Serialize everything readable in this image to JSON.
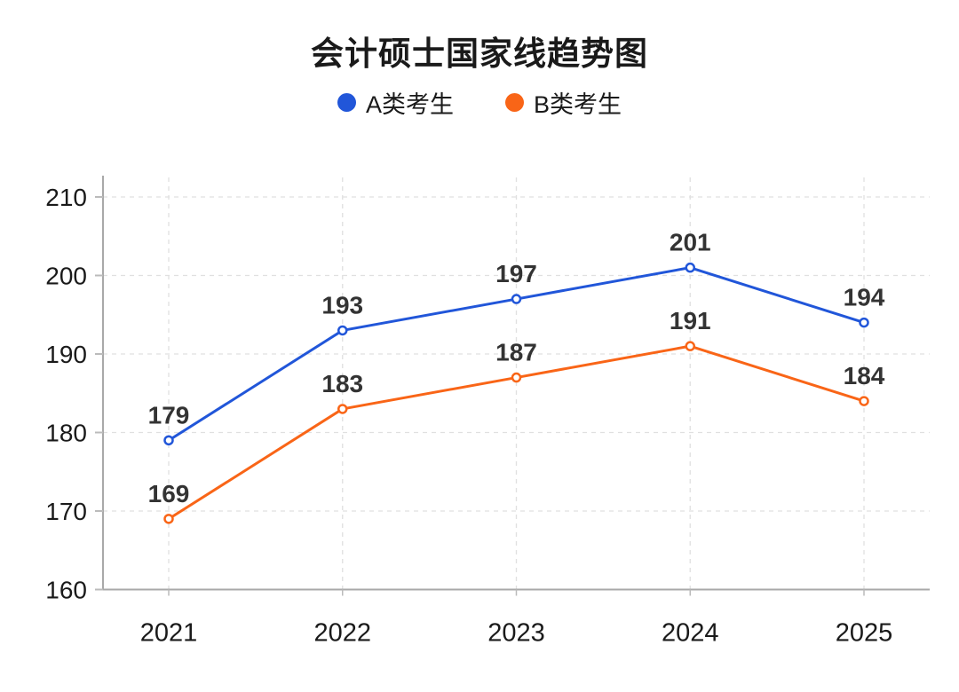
{
  "title": "会计硕士国家线趋势图",
  "legend": {
    "items": [
      {
        "label": "A类考生",
        "color": "#2156d9"
      },
      {
        "label": "B类考生",
        "color": "#f96517"
      }
    ]
  },
  "chart_data": {
    "type": "line",
    "title": "会计硕士国家线趋势图",
    "categories": [
      "2021",
      "2022",
      "2023",
      "2024",
      "2025"
    ],
    "series": [
      {
        "name": "A类考生",
        "color": "#2156d9",
        "values": [
          179,
          193,
          197,
          201,
          194
        ]
      },
      {
        "name": "B类考生",
        "color": "#f96517",
        "values": [
          169,
          183,
          187,
          191,
          184
        ]
      }
    ],
    "xlabel": "",
    "ylabel": "",
    "ylim": [
      160,
      210
    ],
    "ytick_step": 10,
    "y_tick_labels": [
      "160",
      "170",
      "180",
      "190",
      "200",
      "210"
    ],
    "grid": "dashed",
    "legend_position": "top",
    "marker": "open-circle",
    "data_labels": true
  },
  "colors": {
    "axis_line": "#a9a9a9",
    "grid_line": "#e0e0e0",
    "tick": "#bbbbbb",
    "axis_text": "#1a1a1a",
    "value_label": "#333333",
    "background": "#ffffff"
  }
}
